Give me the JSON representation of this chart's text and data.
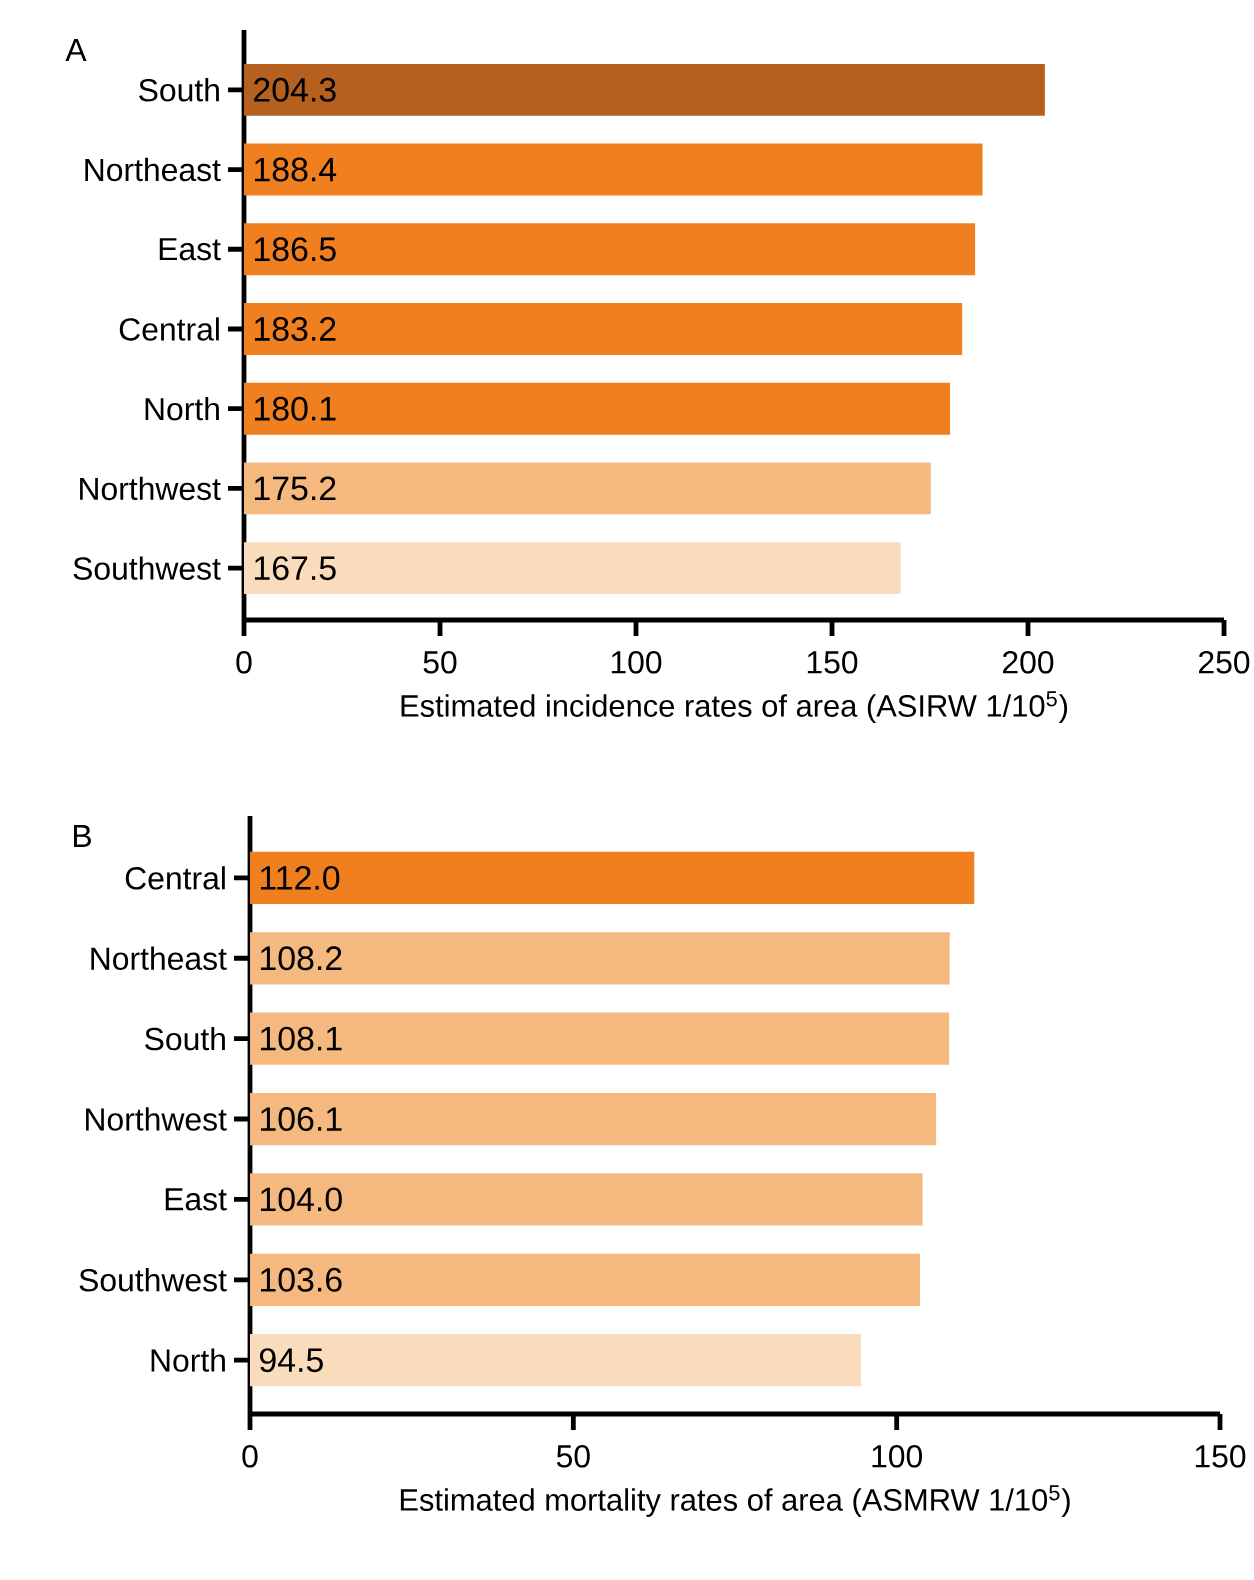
{
  "chart_data": [
    {
      "type": "bar",
      "orientation": "horizontal",
      "title": "A",
      "categories": [
        "South",
        "Northeast",
        "East",
        "Central",
        "North",
        "Northwest",
        "Southwest"
      ],
      "values": [
        204.3,
        188.4,
        186.5,
        183.2,
        180.1,
        175.2,
        167.5
      ],
      "colors": [
        "#b5601f",
        "#ef7f1f",
        "#ef7f1f",
        "#ef7f1f",
        "#ef7f1f",
        "#f5b97f",
        "#f9dcbc"
      ],
      "data_labels": true,
      "xlim": [
        0,
        250
      ],
      "xticks": [
        0,
        50,
        100,
        150,
        200,
        250
      ],
      "xlabel": "Estimated incidence rates of area (ASIRW 1/10$^{5}$)"
    },
    {
      "type": "bar",
      "orientation": "horizontal",
      "title": "B",
      "categories": [
        "Central",
        "Northeast",
        "South",
        "Northwest",
        "East",
        "Southwest",
        "North"
      ],
      "values": [
        112.0,
        108.2,
        108.1,
        106.1,
        104.0,
        103.6,
        94.5
      ],
      "colors": [
        "#ef7f1f",
        "#f5b97f",
        "#f5b97f",
        "#f5b97f",
        "#f5b97f",
        "#f5b97f",
        "#f9dcbc"
      ],
      "value_labels": [
        "112.0",
        "108.2",
        "108.1",
        "106.1",
        "104.0",
        "103.6",
        "94.5"
      ],
      "xlim": [
        0,
        150
      ],
      "xticks": [
        0,
        50,
        100,
        150
      ],
      "xlabel": "Estimated mortality rates of area (ASMRW 1/10$^{5}$)"
    }
  ]
}
